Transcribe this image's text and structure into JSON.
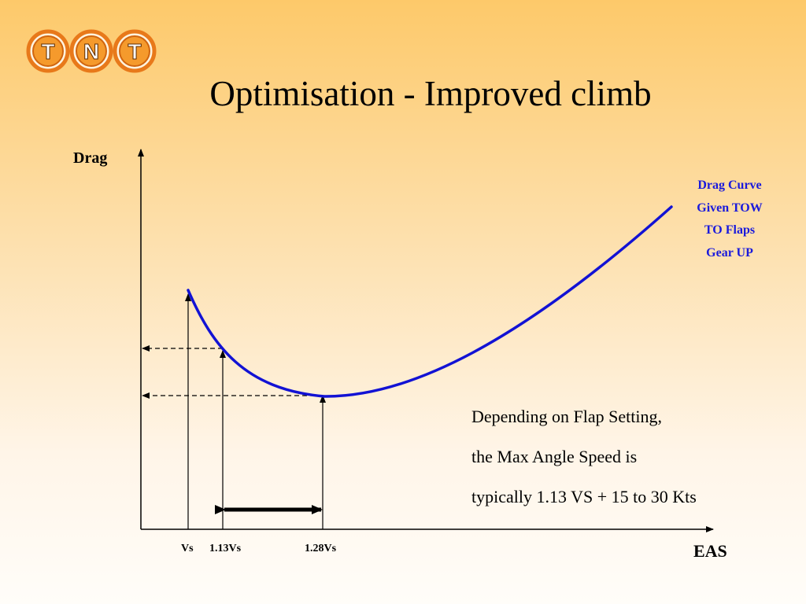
{
  "slide": {
    "title": "Optimisation - Improved climb",
    "logo_letters": [
      "T",
      "N",
      "T"
    ]
  },
  "diagram": {
    "y_axis_label": "Drag",
    "x_axis_label": "EAS",
    "x_ticks": [
      "Vs",
      "1.13Vs",
      "1.28Vs"
    ],
    "legend": [
      "Drag Curve",
      "Given TOW",
      "TO Flaps",
      "Gear UP"
    ],
    "note": [
      "Depending on Flap Setting,",
      "the Max Angle Speed is",
      "typically 1.13 VS + 15 to 30 Kts"
    ]
  },
  "colors": {
    "curve": "#1212d4",
    "legend_text": "#1a1adc",
    "logo_orange": "#f08a1c"
  }
}
